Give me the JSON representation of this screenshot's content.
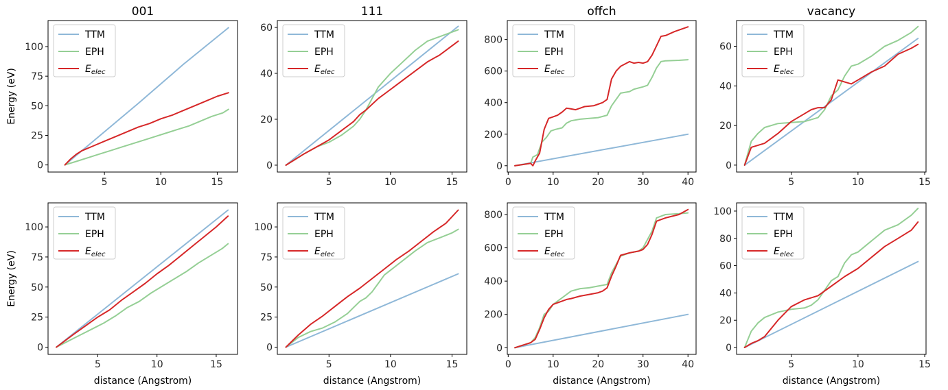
{
  "colors": {
    "TTM": "#8fb8d8",
    "EPH": "#95cf95",
    "Eelec": "#d62728"
  },
  "chart_data": [
    {
      "type": "line",
      "title": "001",
      "xlabel": "",
      "ylabel": "Energy (eV)",
      "xlim": [
        0,
        16.8
      ],
      "ylim": [
        -6,
        122
      ],
      "xticks": [
        5,
        10,
        15
      ],
      "yticks": [
        0,
        25,
        50,
        75,
        100
      ],
      "legend": [
        "TTM",
        "EPH",
        "E_elec"
      ],
      "series": [
        {
          "name": "TTM",
          "x": [
            1.5,
            4,
            8,
            12,
            16
          ],
          "y": [
            0,
            20,
            52,
            85,
            116
          ]
        },
        {
          "name": "EPH",
          "x": [
            1.5,
            2.5,
            3.5,
            4.5,
            5.5,
            6.5,
            7.5,
            8.5,
            9.5,
            10.5,
            11.5,
            12.5,
            13.5,
            14.5,
            15.5,
            16
          ],
          "y": [
            0,
            3,
            6,
            9,
            12,
            15,
            18,
            21,
            24,
            27,
            30,
            33,
            37,
            41,
            44,
            47
          ]
        },
        {
          "name": "E_elec",
          "x": [
            1.5,
            2,
            2.5,
            3,
            4,
            5,
            6,
            7,
            8,
            9,
            10,
            11,
            12,
            13,
            14,
            15,
            16
          ],
          "y": [
            0,
            5,
            9,
            12,
            16,
            20,
            24,
            28,
            32,
            35,
            39,
            42,
            46,
            50,
            54,
            58,
            61
          ]
        }
      ]
    },
    {
      "type": "line",
      "title": "111",
      "xlabel": "",
      "ylabel": "",
      "xlim": [
        0.8,
        16.2
      ],
      "ylim": [
        -3,
        63
      ],
      "xticks": [
        5,
        10,
        15
      ],
      "yticks": [
        0,
        20,
        40,
        60
      ],
      "legend": [
        "TTM",
        "EPH",
        "E_elec"
      ],
      "series": [
        {
          "name": "TTM",
          "x": [
            1.5,
            15.5
          ],
          "y": [
            0,
            60.5
          ]
        },
        {
          "name": "EPH",
          "x": [
            1.5,
            3,
            4,
            5,
            6,
            7,
            7.5,
            8,
            8.5,
            9,
            9.5,
            10,
            11,
            12,
            13,
            14,
            15.5
          ],
          "y": [
            0,
            5,
            8,
            10,
            13,
            17,
            20,
            24,
            29,
            34,
            37,
            40,
            45,
            50,
            54,
            56,
            59
          ]
        },
        {
          "name": "E_elec",
          "x": [
            1.5,
            3,
            4,
            5,
            6,
            7,
            7.5,
            8,
            9,
            10,
            11,
            12,
            13,
            14,
            15,
            15.5
          ],
          "y": [
            0,
            5,
            8,
            11,
            15,
            19,
            22,
            24,
            29,
            33,
            37,
            41,
            45,
            48,
            52,
            54
          ]
        }
      ]
    },
    {
      "type": "line",
      "title": "offch",
      "xlabel": "",
      "ylabel": "",
      "xlim": [
        -0.2,
        41.8
      ],
      "ylim": [
        -40,
        920
      ],
      "xticks": [
        0,
        10,
        20,
        30,
        40
      ],
      "yticks": [
        0,
        200,
        400,
        600,
        800
      ],
      "legend": [
        "TTM",
        "EPH",
        "E_elec"
      ],
      "series": [
        {
          "name": "TTM",
          "x": [
            1.5,
            40
          ],
          "y": [
            0,
            200
          ]
        },
        {
          "name": "EPH",
          "x": [
            1.5,
            5,
            5.5,
            6.5,
            7.5,
            8.5,
            9.5,
            10.5,
            12,
            13,
            14,
            16,
            20,
            22,
            23,
            24,
            25,
            27,
            28,
            30,
            31,
            32,
            33,
            34,
            35,
            38,
            40
          ],
          "y": [
            0,
            15,
            55,
            70,
            150,
            180,
            220,
            230,
            240,
            270,
            285,
            295,
            305,
            320,
            380,
            420,
            460,
            470,
            485,
            500,
            510,
            560,
            620,
            660,
            665,
            668,
            672
          ]
        },
        {
          "name": "E_elec",
          "x": [
            1.5,
            5,
            5.5,
            6,
            7,
            8,
            9,
            10,
            11,
            12,
            13,
            14,
            15,
            16,
            17,
            19,
            20,
            21,
            22,
            23,
            24,
            25,
            27,
            28,
            29,
            30,
            31,
            32,
            33,
            34,
            35,
            37,
            40
          ],
          "y": [
            0,
            15,
            0,
            30,
            80,
            230,
            300,
            310,
            320,
            340,
            365,
            360,
            355,
            365,
            375,
            380,
            390,
            400,
            420,
            550,
            600,
            630,
            660,
            650,
            655,
            650,
            660,
            700,
            760,
            820,
            825,
            850,
            880
          ]
        }
      ]
    },
    {
      "type": "line",
      "title": "vacancy",
      "xlabel": "",
      "ylabel": "",
      "xlim": [
        0.9,
        15.1
      ],
      "ylim": [
        -3.5,
        73
      ],
      "xticks": [
        5,
        10,
        15
      ],
      "yticks": [
        0,
        20,
        40,
        60
      ],
      "legend": [
        "TTM",
        "EPH",
        "E_elec"
      ],
      "series": [
        {
          "name": "TTM",
          "x": [
            1.5,
            14.5
          ],
          "y": [
            0,
            64
          ]
        },
        {
          "name": "EPH",
          "x": [
            1.5,
            2,
            2.5,
            3,
            4,
            5,
            6,
            7,
            7.5,
            8,
            8.5,
            9,
            9.5,
            10,
            11,
            12,
            13,
            14,
            14.5
          ],
          "y": [
            0,
            12,
            16,
            19,
            21,
            21.5,
            22,
            24,
            28,
            35,
            38,
            45,
            50,
            51,
            55,
            60,
            63,
            67,
            70
          ]
        },
        {
          "name": "E_elec",
          "x": [
            1.5,
            2,
            3,
            4,
            5,
            6,
            6.5,
            7,
            7.5,
            8,
            8.5,
            9,
            9.5,
            10,
            11,
            12,
            13,
            14,
            14.5
          ],
          "y": [
            0,
            9,
            11,
            16,
            22,
            26,
            28,
            29,
            29,
            33,
            43,
            42,
            41,
            43,
            47,
            50,
            56,
            59,
            61
          ]
        }
      ]
    },
    {
      "type": "line",
      "title": "",
      "xlabel": "distance (Angstrom)",
      "ylabel": "Energy (eV)",
      "xlim": [
        0.8,
        16.8
      ],
      "ylim": [
        -6,
        120
      ],
      "xticks": [
        5,
        10,
        15
      ],
      "yticks": [
        0,
        25,
        50,
        75,
        100
      ],
      "legend": [
        "TTM",
        "EPH",
        "E_elec"
      ],
      "series": [
        {
          "name": "TTM",
          "x": [
            1.5,
            16
          ],
          "y": [
            0,
            114
          ]
        },
        {
          "name": "EPH",
          "x": [
            1.5,
            2.5,
            3.5,
            4.5,
            5.5,
            6.5,
            7.5,
            8.5,
            9.5,
            10.5,
            11.5,
            12.5,
            13.5,
            14.5,
            15.5,
            16
          ],
          "y": [
            0,
            5,
            10,
            15,
            20,
            26,
            33,
            38,
            45,
            51,
            57,
            63,
            70,
            76,
            82,
            86
          ]
        },
        {
          "name": "E_elec",
          "x": [
            1.5,
            3,
            4,
            5,
            6,
            7,
            8,
            9,
            10,
            11,
            12,
            13,
            14,
            15,
            16
          ],
          "y": [
            0,
            11,
            18,
            25,
            31,
            39,
            46,
            53,
            61,
            68,
            76,
            84,
            92,
            100,
            109
          ]
        }
      ]
    },
    {
      "type": "line",
      "title": "",
      "xlabel": "distance (Angstrom)",
      "ylabel": "",
      "xlim": [
        0.8,
        16.2
      ],
      "ylim": [
        -6,
        120
      ],
      "xticks": [
        5,
        10,
        15
      ],
      "yticks": [
        0,
        25,
        50,
        75,
        100
      ],
      "legend": [
        "TTM",
        "EPH",
        "E_elec"
      ],
      "series": [
        {
          "name": "TTM",
          "x": [
            1.5,
            15.5
          ],
          "y": [
            0,
            61
          ]
        },
        {
          "name": "EPH",
          "x": [
            1.5,
            2.5,
            3.5,
            4.5,
            5.5,
            6.5,
            7,
            7.5,
            8,
            8.5,
            9,
            9.5,
            10,
            11,
            12,
            13,
            14,
            15,
            15.5
          ],
          "y": [
            0,
            8,
            13,
            16,
            21,
            28,
            33,
            38,
            41,
            46,
            53,
            60,
            64,
            72,
            80,
            87,
            91,
            95,
            98
          ]
        },
        {
          "name": "E_elec",
          "x": [
            1.5,
            2.5,
            3.5,
            4.5,
            5.5,
            6.5,
            7.5,
            8.5,
            9.5,
            10.5,
            11.5,
            12.5,
            13.5,
            14.5,
            15.5
          ],
          "y": [
            0,
            10,
            19,
            26,
            34,
            42,
            49,
            57,
            65,
            73,
            80,
            88,
            96,
            103,
            114
          ]
        }
      ]
    },
    {
      "type": "line",
      "title": "",
      "xlabel": "distance (Angstrom)",
      "ylabel": "",
      "xlim": [
        -0.2,
        41.8
      ],
      "ylim": [
        -40,
        870
      ],
      "xticks": [
        0,
        10,
        20,
        30,
        40
      ],
      "yticks": [
        0,
        200,
        400,
        600,
        800
      ],
      "legend": [
        "TTM",
        "EPH",
        "E_elec"
      ],
      "series": [
        {
          "name": "TTM",
          "x": [
            1.5,
            40
          ],
          "y": [
            0,
            200
          ]
        },
        {
          "name": "EPH",
          "x": [
            1.5,
            5,
            6,
            7,
            8,
            9,
            10,
            11,
            12,
            13,
            14,
            16,
            18,
            20,
            21,
            22,
            23,
            24,
            25,
            27,
            29,
            30,
            31,
            32,
            33,
            34,
            35,
            38,
            40
          ],
          "y": [
            0,
            30,
            60,
            120,
            200,
            220,
            260,
            280,
            300,
            320,
            340,
            355,
            360,
            370,
            375,
            380,
            450,
            500,
            550,
            570,
            580,
            600,
            650,
            700,
            780,
            790,
            800,
            805,
            810
          ]
        },
        {
          "name": "E_elec",
          "x": [
            1.5,
            5,
            6,
            7,
            8,
            9,
            10,
            11,
            12,
            13,
            14,
            16,
            18,
            20,
            21,
            22,
            23,
            24,
            25,
            27,
            29,
            30,
            31,
            32,
            33,
            34,
            35,
            38,
            40
          ],
          "y": [
            0,
            30,
            50,
            110,
            180,
            230,
            260,
            270,
            280,
            290,
            295,
            310,
            320,
            330,
            340,
            360,
            430,
            490,
            555,
            570,
            580,
            590,
            620,
            680,
            760,
            770,
            780,
            800,
            830
          ]
        }
      ]
    },
    {
      "type": "line",
      "title": "",
      "xlabel": "distance (Angstrom)",
      "ylabel": "",
      "xlim": [
        0.9,
        15.1
      ],
      "ylim": [
        -5,
        106
      ],
      "xticks": [
        5,
        10,
        15
      ],
      "yticks": [
        0,
        20,
        40,
        60,
        80,
        100
      ],
      "legend": [
        "TTM",
        "EPH",
        "E_elec"
      ],
      "series": [
        {
          "name": "TTM",
          "x": [
            1.5,
            14.5
          ],
          "y": [
            0,
            63
          ]
        },
        {
          "name": "EPH",
          "x": [
            1.5,
            2,
            2.5,
            3,
            4,
            5,
            6,
            6.5,
            7,
            7.5,
            8,
            8.5,
            9,
            9.5,
            10,
            11,
            12,
            13,
            14,
            14.5
          ],
          "y": [
            0,
            12,
            18,
            22,
            26,
            28,
            29,
            31,
            35,
            42,
            49,
            52,
            62,
            68,
            70,
            78,
            86,
            90,
            97,
            102
          ]
        },
        {
          "name": "E_elec",
          "x": [
            1.5,
            2,
            2.5,
            3,
            4,
            5,
            6,
            7,
            8,
            9,
            10,
            11,
            12,
            13,
            14,
            14.5
          ],
          "y": [
            0,
            3,
            5,
            8,
            20,
            30,
            35,
            38,
            45,
            52,
            58,
            66,
            74,
            80,
            86,
            92
          ]
        }
      ]
    }
  ]
}
